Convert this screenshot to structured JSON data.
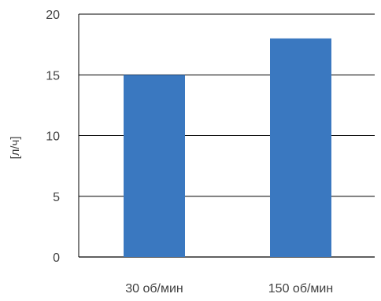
{
  "chart_data": {
    "type": "bar",
    "categories": [
      "30 об/мин",
      "150 об/мин"
    ],
    "series": [
      {
        "values": [
          15,
          18
        ],
        "color": "#3A78C0"
      }
    ],
    "ylabel": "[л/ч]",
    "xlabel": "",
    "ylim": [
      0,
      20
    ],
    "yticks": [
      0,
      5,
      10,
      15,
      20
    ],
    "grid": true,
    "legend": "none"
  }
}
